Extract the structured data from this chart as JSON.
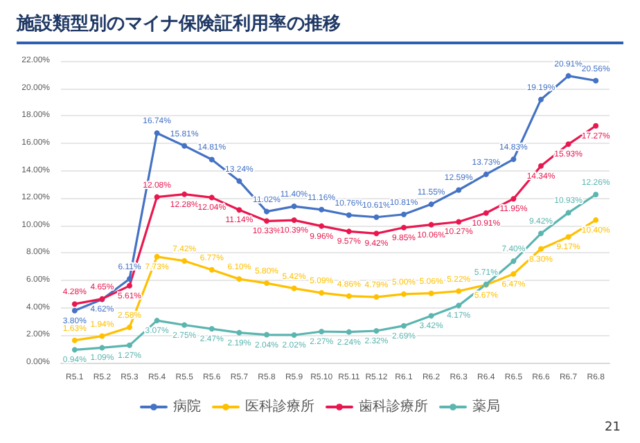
{
  "chart_data": {
    "type": "line",
    "title": "施設類型別のマイナ保険証利用率の推移",
    "categories": [
      "R5.1",
      "R5.2",
      "R5.3",
      "R5.4",
      "R5.5",
      "R5.6",
      "R5.7",
      "R5.8",
      "R5.9",
      "R5.10",
      "R5.11",
      "R5.12",
      "R6.1",
      "R6.2",
      "R6.3",
      "R6.4",
      "R6.5",
      "R6.6",
      "R6.7",
      "R6.8"
    ],
    "series": [
      {
        "name": "病院",
        "color": "#4472c4",
        "values": [
          3.8,
          4.62,
          6.11,
          16.74,
          15.81,
          14.81,
          13.24,
          11.02,
          11.4,
          11.16,
          10.76,
          10.61,
          10.81,
          11.55,
          12.59,
          13.73,
          14.83,
          19.19,
          20.91,
          20.56
        ],
        "value_labels": [
          "3.80%",
          "4.62%",
          "6.11%",
          "16.74%",
          "15.81%",
          "14.81%",
          "13.24%",
          "11.02%",
          "11.40%",
          "11.16%",
          "10.76%",
          "10.61%",
          "10.81%",
          "11.55%",
          "12.59%",
          "13.73%",
          "14.83%",
          "19.19%",
          "20.91%",
          "20.56%"
        ]
      },
      {
        "name": "医科診療所",
        "color": "#ffc000",
        "values": [
          1.63,
          1.94,
          2.58,
          7.73,
          7.42,
          6.77,
          6.1,
          5.8,
          5.42,
          5.09,
          4.86,
          4.79,
          5.0,
          5.06,
          5.22,
          5.67,
          6.47,
          8.3,
          9.17,
          10.4
        ],
        "value_labels": [
          "1.63%",
          "1.94%",
          "2.58%",
          "7.73%",
          "7.42%",
          "6.77%",
          "6.10%",
          "5.80%",
          "5.42%",
          "5.09%",
          "4.86%",
          "4.79%",
          "5.00%",
          "5.06%",
          "5.22%",
          "5.67%",
          "6.47%",
          "8.30%",
          "9.17%",
          "10.40%"
        ]
      },
      {
        "name": "歯科診療所",
        "color": "#e8174f",
        "values": [
          4.28,
          4.65,
          5.61,
          12.08,
          12.28,
          12.04,
          11.14,
          10.33,
          10.39,
          9.96,
          9.57,
          9.42,
          9.85,
          10.06,
          10.27,
          10.91,
          11.95,
          14.34,
          15.93,
          17.27
        ],
        "value_labels": [
          "4.28%",
          "4.65%",
          "5.61%",
          "12.08%",
          "12.28%",
          "12.04%",
          "11.14%",
          "10.33%",
          "10.39%",
          "9.96%",
          "9.57%",
          "9.42%",
          "9.85%",
          "10.06%",
          "10.27%",
          "10.91%",
          "11.95%",
          "14.34%",
          "15.93%",
          "17.27%"
        ]
      },
      {
        "name": "薬局",
        "color": "#5bb5b0",
        "values": [
          0.94,
          1.09,
          1.27,
          3.07,
          2.75,
          2.47,
          2.19,
          2.04,
          2.02,
          2.27,
          2.24,
          2.32,
          2.69,
          3.42,
          4.17,
          5.71,
          7.4,
          9.42,
          10.93,
          12.26
        ],
        "value_labels": [
          "0.94%",
          "1.09%",
          "1.27%",
          "3.07%",
          "2.75%",
          "2.47%",
          "2.19%",
          "2.04%",
          "2.02%",
          "2.27%",
          "2.24%",
          "2.32%",
          "2.69%",
          "3.42%",
          "4.17%",
          "5.71%",
          "7.40%",
          "9.42%",
          "10.93%",
          "12.26%"
        ]
      }
    ],
    "ylim": [
      0,
      22
    ],
    "yticks": [
      {
        "value": 0,
        "label": "0.00%"
      },
      {
        "value": 2,
        "label": "2.00%"
      },
      {
        "value": 4,
        "label": "4.00%"
      },
      {
        "value": 6,
        "label": "6.00%"
      },
      {
        "value": 8,
        "label": "8.00%"
      },
      {
        "value": 10,
        "label": "10.00%"
      },
      {
        "value": 12,
        "label": "12.00%"
      },
      {
        "value": 14,
        "label": "14.00%"
      },
      {
        "value": 16,
        "label": "16.00%"
      },
      {
        "value": 18,
        "label": "18.00%"
      },
      {
        "value": 20,
        "label": "20.00%"
      },
      {
        "value": 22,
        "label": "22.00%"
      }
    ],
    "grid": "y",
    "legend": "bottom",
    "marker": "circle",
    "line_style": "solid",
    "annotations": [
      "21"
    ]
  }
}
